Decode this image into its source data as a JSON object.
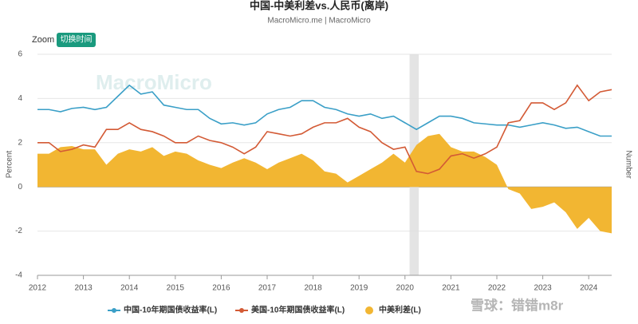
{
  "chart_data": {
    "type": "line",
    "title": "中国-中美利差vs.人民币(离岸)",
    "subtitle": "MacroMicro.me | MacroMicro",
    "zoom_label": "Zoom",
    "zoom_button": "切换时间",
    "watermarks": [
      "MacroMicro",
      "雪球：错错m8r"
    ],
    "ylabel": "Percent",
    "y2label": "Number",
    "xlim": [
      2012,
      2024.5
    ],
    "xticks": [
      2012,
      2013,
      2014,
      2015,
      2016,
      2017,
      2018,
      2019,
      2020,
      2021,
      2022,
      2023,
      2024
    ],
    "ylim": [
      -4,
      6
    ],
    "yticks": [
      -4,
      -2,
      0,
      2,
      4,
      6
    ],
    "grid": true,
    "shaded_range": [
      2020.1,
      2020.3
    ],
    "x": [
      2012,
      2012.25,
      2012.5,
      2012.75,
      2013,
      2013.25,
      2013.5,
      2013.75,
      2014,
      2014.25,
      2014.5,
      2014.75,
      2015,
      2015.25,
      2015.5,
      2015.75,
      2016,
      2016.25,
      2016.5,
      2016.75,
      2017,
      2017.25,
      2017.5,
      2017.75,
      2018,
      2018.25,
      2018.5,
      2018.75,
      2019,
      2019.25,
      2019.5,
      2019.75,
      2020,
      2020.25,
      2020.5,
      2020.75,
      2021,
      2021.25,
      2021.5,
      2021.75,
      2022,
      2022.25,
      2022.5,
      2022.75,
      2023,
      2023.25,
      2023.5,
      2023.75,
      2024,
      2024.25,
      2024.5
    ],
    "series": [
      {
        "name": "中美利差(L)",
        "kind": "area",
        "color": "#f2b632",
        "values": [
          1.5,
          1.5,
          1.8,
          1.85,
          1.7,
          1.7,
          1.0,
          1.5,
          1.7,
          1.6,
          1.8,
          1.4,
          1.6,
          1.5,
          1.2,
          1.0,
          0.85,
          1.1,
          1.3,
          1.1,
          0.8,
          1.1,
          1.3,
          1.5,
          1.2,
          0.7,
          0.6,
          0.2,
          0.5,
          0.8,
          1.1,
          1.5,
          1.1,
          1.9,
          2.3,
          2.4,
          1.8,
          1.6,
          1.6,
          1.35,
          1.0,
          -0.1,
          -0.3,
          -1.0,
          -0.9,
          -0.7,
          -1.15,
          -1.9,
          -1.4,
          -2.0,
          -2.1
        ]
      },
      {
        "name": "中国-10年期国债收益率(L)",
        "kind": "line",
        "color": "#3a9fc7",
        "values": [
          3.5,
          3.5,
          3.4,
          3.55,
          3.6,
          3.5,
          3.6,
          4.1,
          4.6,
          4.2,
          4.3,
          3.7,
          3.6,
          3.5,
          3.5,
          3.1,
          2.85,
          2.9,
          2.8,
          2.9,
          3.3,
          3.5,
          3.6,
          3.9,
          3.9,
          3.6,
          3.5,
          3.3,
          3.2,
          3.3,
          3.1,
          3.2,
          2.9,
          2.6,
          2.9,
          3.2,
          3.2,
          3.1,
          2.9,
          2.85,
          2.8,
          2.8,
          2.7,
          2.8,
          2.9,
          2.8,
          2.65,
          2.7,
          2.5,
          2.3,
          2.3
        ]
      },
      {
        "name": "美国-10年期国债收益率(L)",
        "kind": "line",
        "color": "#d35a35",
        "values": [
          2.0,
          2.0,
          1.6,
          1.7,
          1.9,
          1.8,
          2.6,
          2.6,
          2.9,
          2.6,
          2.5,
          2.3,
          2.0,
          2.0,
          2.3,
          2.1,
          2.0,
          1.8,
          1.5,
          1.8,
          2.5,
          2.4,
          2.3,
          2.4,
          2.7,
          2.9,
          2.9,
          3.1,
          2.7,
          2.5,
          2.0,
          1.7,
          1.8,
          0.7,
          0.6,
          0.8,
          1.4,
          1.5,
          1.3,
          1.5,
          1.8,
          2.9,
          3.0,
          3.8,
          3.8,
          3.5,
          3.8,
          4.6,
          3.9,
          4.3,
          4.4
        ]
      }
    ],
    "legend_order": [
      1,
      2,
      0
    ]
  }
}
